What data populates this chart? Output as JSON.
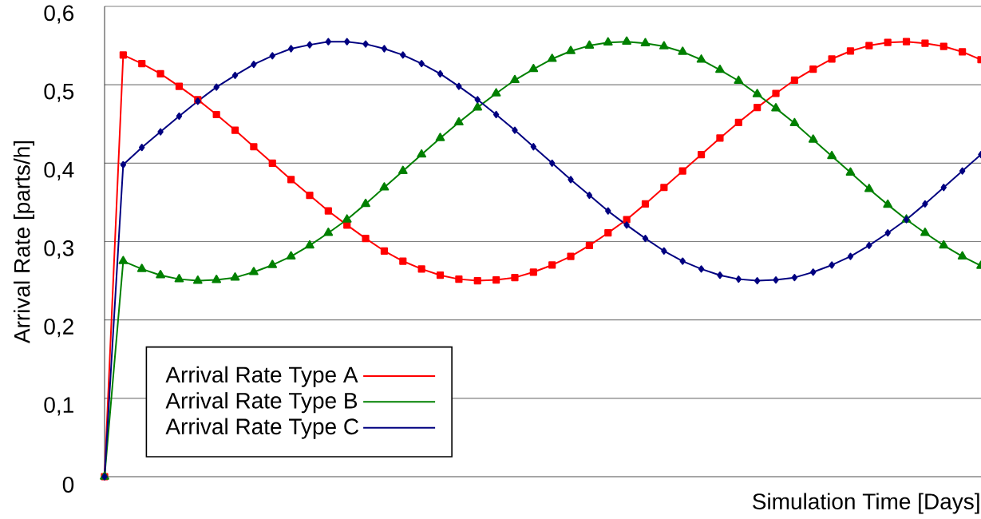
{
  "chart_data": {
    "type": "line",
    "xlabel": "Simulation Time [Days]",
    "ylabel": "Arrival Rate [parts/h]",
    "categories": [
      null,
      null,
      null,
      null,
      null,
      null,
      null,
      null,
      null,
      null,
      null,
      null,
      null,
      null,
      null,
      null,
      null,
      null,
      null,
      null,
      null,
      null,
      null,
      null,
      null,
      null,
      null,
      null,
      null,
      null,
      null,
      null,
      null,
      null,
      null,
      null,
      null,
      null,
      null,
      null,
      null,
      null,
      null,
      null,
      null,
      null,
      null,
      null
    ],
    "series": [
      {
        "name": "Arrival Rate Type A",
        "color": "#ff0000",
        "marker": "square",
        "values": [
          0,
          0.538,
          0.527,
          0.514,
          0.498,
          0.481,
          0.462,
          0.442,
          0.421,
          0.4,
          0.379,
          0.359,
          0.339,
          0.321,
          0.304,
          0.288,
          0.275,
          0.265,
          0.257,
          0.252,
          0.25,
          0.251,
          0.254,
          0.261,
          0.27,
          0.281,
          0.295,
          0.311,
          0.328,
          0.348,
          0.369,
          0.39,
          0.411,
          0.432,
          0.452,
          0.471,
          0.489,
          0.506,
          0.52,
          0.533,
          0.543,
          0.55,
          0.554,
          0.555,
          0.553,
          0.549,
          0.542,
          0.532
        ]
      },
      {
        "name": "Arrival Rate Type B",
        "color": "#008000",
        "marker": "triangle",
        "values": [
          0,
          0.275,
          0.265,
          0.257,
          0.252,
          0.25,
          0.251,
          0.254,
          0.261,
          0.27,
          0.281,
          0.295,
          0.311,
          0.328,
          0.348,
          0.369,
          0.39,
          0.411,
          0.432,
          0.452,
          0.471,
          0.489,
          0.506,
          0.52,
          0.533,
          0.543,
          0.55,
          0.554,
          0.555,
          0.553,
          0.549,
          0.542,
          0.532,
          0.519,
          0.505,
          0.488,
          0.47,
          0.451,
          0.43,
          0.409,
          0.388,
          0.367,
          0.347,
          0.328,
          0.311,
          0.295,
          0.281,
          0.269
        ]
      },
      {
        "name": "Arrival Rate Type C",
        "color": "#000080",
        "marker": "diamond",
        "values": [
          0,
          0.398,
          0.42,
          0.44,
          0.46,
          0.479,
          0.497,
          0.512,
          0.526,
          0.537,
          0.546,
          0.551,
          0.555,
          0.555,
          0.552,
          0.546,
          0.538,
          0.527,
          0.514,
          0.498,
          0.481,
          0.462,
          0.442,
          0.421,
          0.4,
          0.379,
          0.359,
          0.339,
          0.321,
          0.304,
          0.288,
          0.275,
          0.265,
          0.257,
          0.252,
          0.25,
          0.251,
          0.254,
          0.261,
          0.27,
          0.281,
          0.295,
          0.311,
          0.328,
          0.348,
          0.369,
          0.39,
          0.411
        ]
      }
    ],
    "ylim": [
      0,
      0.6
    ],
    "yticks": [
      {
        "value": 0,
        "label": "0"
      },
      {
        "value": 0.1,
        "label": "0,1"
      },
      {
        "value": 0.2,
        "label": "0,2"
      },
      {
        "value": 0.3,
        "label": "0,3"
      },
      {
        "value": 0.4,
        "label": "0,4"
      },
      {
        "value": 0.5,
        "label": "0,5"
      },
      {
        "value": 0.6,
        "label": "0,6"
      }
    ],
    "grid": "y",
    "legend": "bottom left",
    "line_style": "solid"
  }
}
